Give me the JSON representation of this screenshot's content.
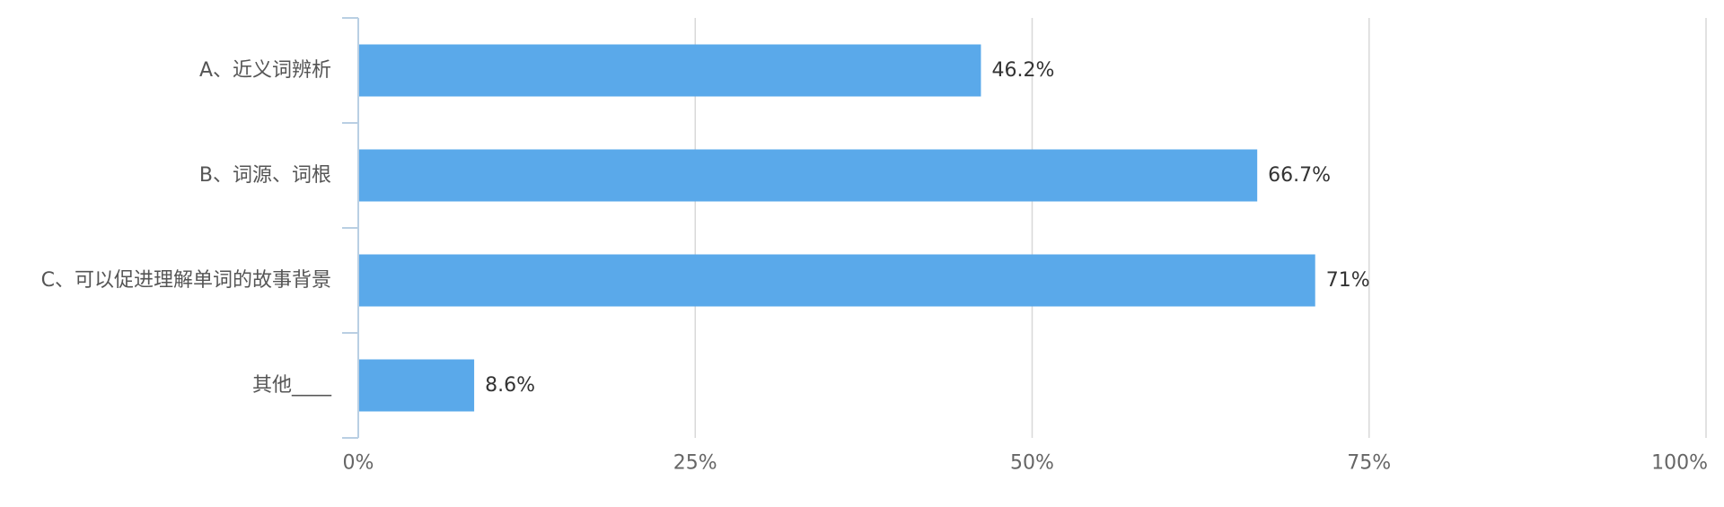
{
  "chart_data": {
    "type": "bar",
    "orientation": "horizontal",
    "categories": [
      "A、近义词辨析",
      "B、词源、词根",
      "C、可以促进理解单词的故事背景",
      "其他____"
    ],
    "values": [
      46.2,
      66.7,
      71,
      8.6
    ],
    "value_labels": [
      "46.2%",
      "66.7%",
      "71%",
      "8.6%"
    ],
    "x_ticks": [
      0,
      25,
      50,
      75,
      100
    ],
    "x_tick_labels": [
      "0%",
      "25%",
      "50%",
      "75%",
      "100%"
    ],
    "xlim": [
      0,
      100
    ],
    "grid": "vertical",
    "legend": "none",
    "title": "",
    "xlabel": "",
    "ylabel": ""
  },
  "colors": {
    "bar": "#5aa9ea",
    "grid": "#d8d8d8",
    "axis": "#b9cfe3",
    "category_text": "#555555",
    "tick_text": "#666666",
    "value_text": "#333333"
  }
}
